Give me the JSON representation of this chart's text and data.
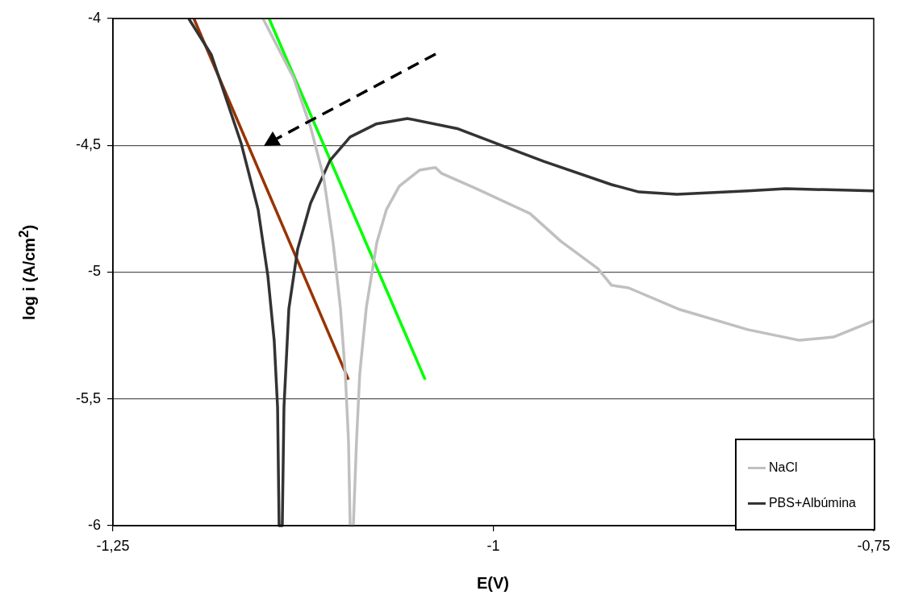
{
  "chart_data": {
    "type": "line",
    "xlabel": "E(V)",
    "ylabel": "log i (A/cm$^{2}$)",
    "xlim": [
      -1.25,
      -0.75
    ],
    "xticks": [
      {
        "value": -1.25,
        "label": "-1,25"
      },
      {
        "value": -1,
        "label": "-1"
      },
      {
        "value": -0.75,
        "label": "-0,75"
      }
    ],
    "ylim": [
      -6,
      -4
    ],
    "yticks": [
      {
        "value": -6,
        "label": "-6"
      },
      {
        "value": -5.5,
        "label": "-5,5"
      },
      {
        "value": -5,
        "label": "-5"
      },
      {
        "value": -4.5,
        "label": "-4,5"
      },
      {
        "value": -4,
        "label": "-4"
      }
    ],
    "grid": "y",
    "legend": "bottom right",
    "marker": "none",
    "line_style": "solid",
    "series": [
      {
        "name": "NaCl",
        "color": "#c0c0c0",
        "x": [
          -1.1514,
          -1.1312,
          -1.1201,
          -1.1116,
          -1.1053,
          -1.1005,
          -1.0973,
          -1.0952,
          -1.0941,
          -1.092,
          -1.0899,
          -1.0878,
          -1.0835,
          -1.0766,
          -1.0703,
          -1.0618,
          -1.0485,
          -1.039,
          -1.0379,
          -1.0342,
          -1.0119,
          -0.9759,
          -0.9557,
          -0.9313,
          -0.9223,
          -0.9112,
          -0.8773,
          -0.8327,
          -0.7988,
          -0.7765,
          -0.75
        ],
        "values": [
          -4,
          -4.235,
          -4.429,
          -4.623,
          -4.884,
          -5.141,
          -5.402,
          -5.663,
          -6,
          -6,
          -5.663,
          -5.402,
          -5.141,
          -4.884,
          -4.754,
          -4.661,
          -4.598,
          -4.588,
          -4.588,
          -4.61,
          -4.669,
          -4.769,
          -4.878,
          -4.986,
          -5.052,
          -5.062,
          -5.148,
          -5.227,
          -5.269,
          -5.256,
          -5.192
        ]
      },
      {
        "name": "PBS+Albúmina",
        "color": "#333333",
        "x": [
          -1.2002,
          -1.1853,
          -1.1657,
          -1.1546,
          -1.1482,
          -1.144,
          -1.1418,
          -1.1408,
          -1.1387,
          -1.1376,
          -1.1344,
          -1.1286,
          -1.1201,
          -1.1074,
          -1.0941,
          -1.0771,
          -1.0565,
          -1.0231,
          -0.9939,
          -0.9669,
          -0.9223,
          -0.9043,
          -0.8794,
          -0.8327,
          -0.8078,
          -0.75
        ],
        "values": [
          -4,
          -4.143,
          -4.493,
          -4.753,
          -5.014,
          -5.272,
          -5.533,
          -6,
          -6,
          -5.533,
          -5.145,
          -4.909,
          -4.728,
          -4.56,
          -4.467,
          -4.416,
          -4.394,
          -4.435,
          -4.502,
          -4.563,
          -4.655,
          -4.684,
          -4.693,
          -4.68,
          -4.671,
          -4.68
        ]
      },
      {
        "color": "#993300",
        "x": [
          -1.1968,
          -1.0952
        ],
        "values": [
          -4,
          -5.424
        ]
      },
      {
        "color": "#00ff00",
        "x": [
          -1.1474,
          -1.0448
        ],
        "values": [
          -4,
          -5.424
        ]
      }
    ]
  }
}
